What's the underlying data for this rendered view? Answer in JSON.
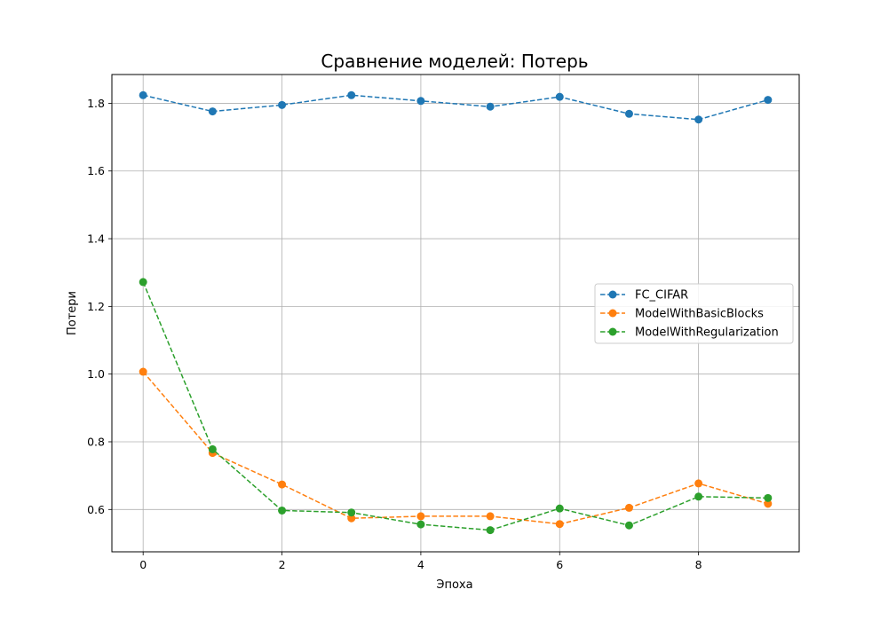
{
  "chart_data": {
    "type": "line",
    "title": "Сравнение моделей: Потерь",
    "xlabel": "Эпоха",
    "ylabel": "Потери",
    "xlim": [
      -0.45,
      9.45
    ],
    "ylim": [
      0.475,
      1.885
    ],
    "x": [
      0,
      1,
      2,
      3,
      4,
      5,
      6,
      7,
      8,
      9
    ],
    "xticks": [
      0,
      2,
      4,
      6,
      8
    ],
    "yticks": [
      0.6,
      0.8,
      1.0,
      1.2,
      1.4,
      1.6,
      1.8
    ],
    "xtick_labels": [
      "0",
      "2",
      "4",
      "6",
      "8"
    ],
    "ytick_labels": [
      "0.6",
      "0.8",
      "1.0",
      "1.2",
      "1.4",
      "1.6",
      "1.8"
    ],
    "grid": true,
    "legend_position": "center-right",
    "series": [
      {
        "name": "FC_CIFAR",
        "color": "#1f77b4",
        "values": [
          1.824,
          1.776,
          1.795,
          1.824,
          1.807,
          1.79,
          1.819,
          1.769,
          1.752,
          1.81
        ]
      },
      {
        "name": "ModelWithBasicBlocks",
        "color": "#ff7f0e",
        "values": [
          1.007,
          0.767,
          0.674,
          0.574,
          0.58,
          0.58,
          0.557,
          0.605,
          0.677,
          0.617
        ]
      },
      {
        "name": "ModelWithRegularization",
        "color": "#2ca02c",
        "values": [
          1.272,
          0.778,
          0.597,
          0.591,
          0.556,
          0.539,
          0.603,
          0.553,
          0.638,
          0.634
        ]
      }
    ]
  }
}
